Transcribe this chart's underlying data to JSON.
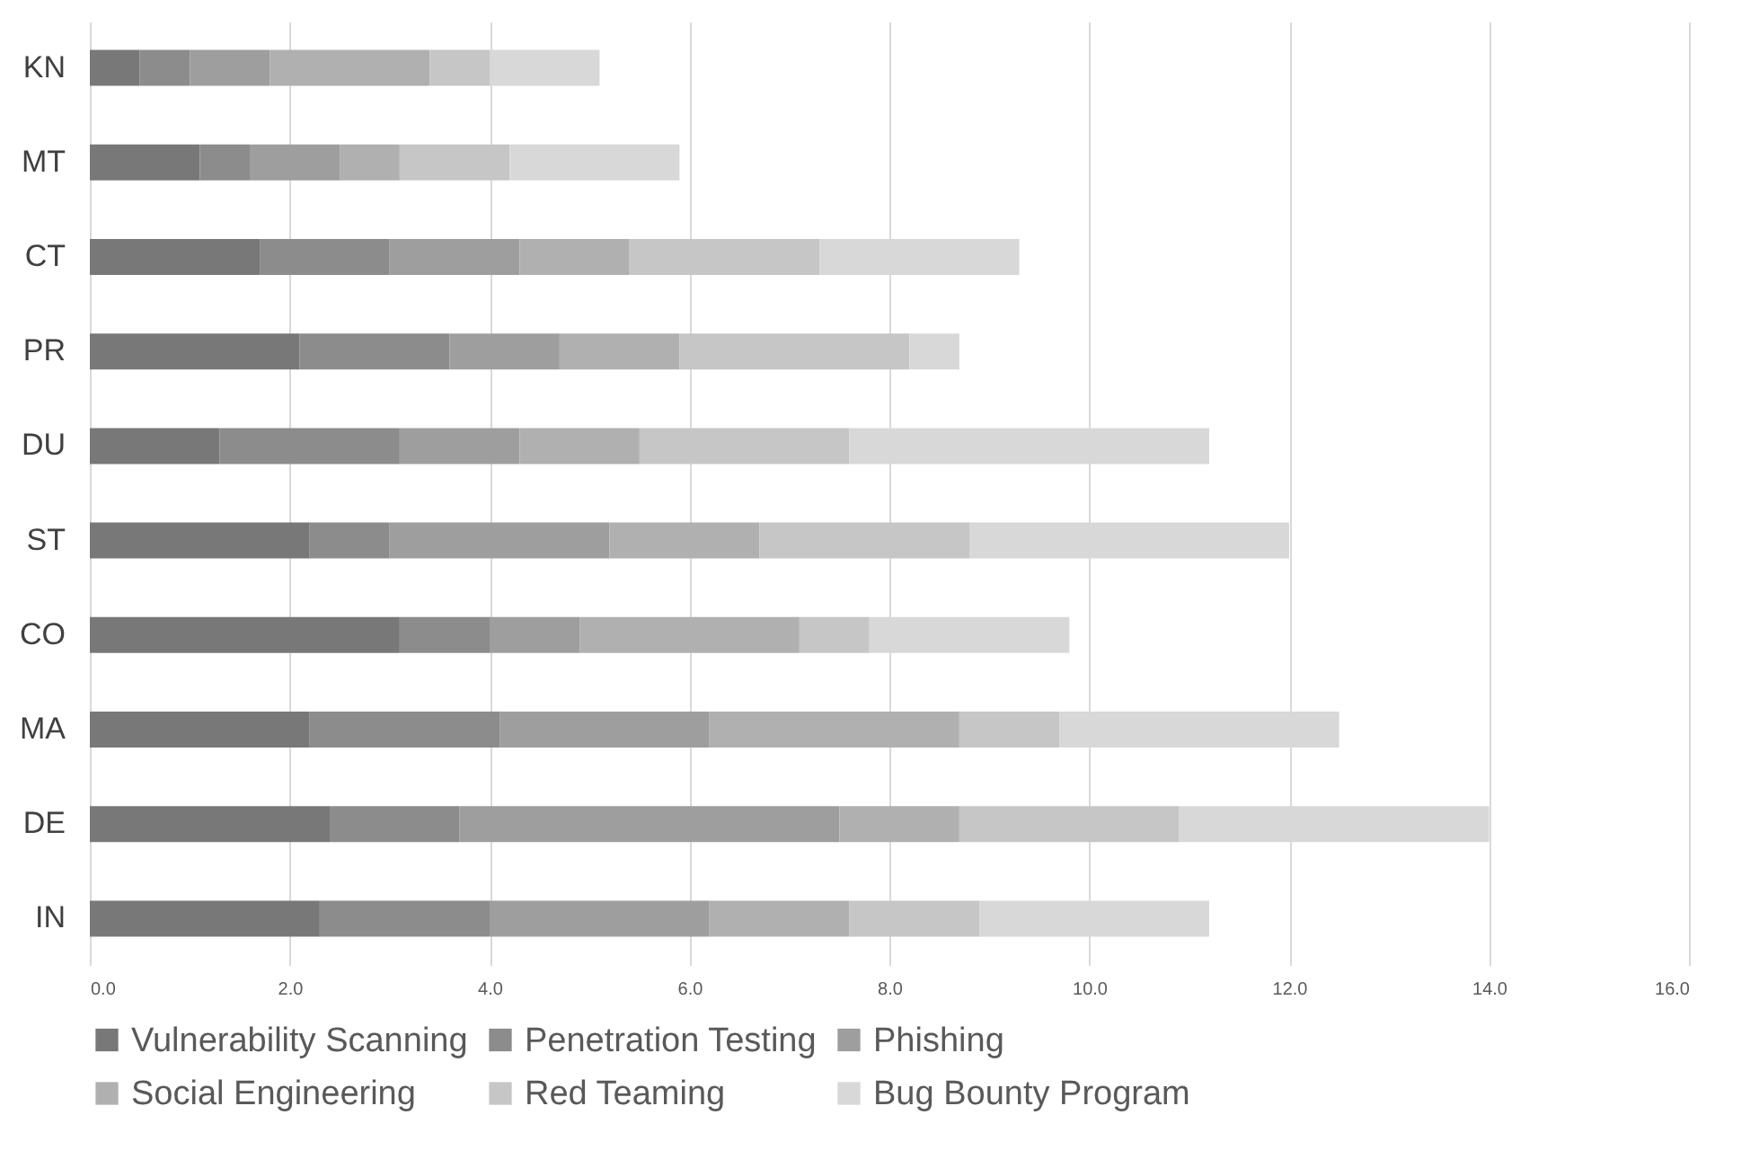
{
  "chart_data": {
    "type": "bar",
    "orientation": "horizontal",
    "stacked": true,
    "categories": [
      "KN",
      "MT",
      "CT",
      "PR",
      "DU",
      "ST",
      "CO",
      "MA",
      "DE",
      "IN"
    ],
    "series": [
      {
        "name": "Vulnerability Scanning",
        "color": "#787878",
        "values": [
          0.5,
          1.1,
          1.7,
          2.1,
          1.3,
          2.2,
          3.1,
          2.2,
          2.4,
          2.3
        ]
      },
      {
        "name": "Penetration Testing",
        "color": "#8c8c8c",
        "values": [
          0.5,
          0.5,
          1.3,
          1.5,
          1.8,
          0.8,
          0.9,
          1.9,
          1.3,
          1.7
        ]
      },
      {
        "name": "Phishing",
        "color": "#9e9e9e",
        "values": [
          0.8,
          0.9,
          1.3,
          1.1,
          1.2,
          2.2,
          0.9,
          2.1,
          3.8,
          2.2
        ]
      },
      {
        "name": "Social Engineering",
        "color": "#b0b0b0",
        "values": [
          1.6,
          0.6,
          1.1,
          1.2,
          1.2,
          1.5,
          2.2,
          2.5,
          1.2,
          1.4
        ]
      },
      {
        "name": "Red Teaming",
        "color": "#c6c6c6",
        "values": [
          0.6,
          1.1,
          1.9,
          2.3,
          2.1,
          2.1,
          0.7,
          1.0,
          2.2,
          1.3
        ]
      },
      {
        "name": "Bug Bounty Program",
        "color": "#d8d8d8",
        "values": [
          1.1,
          1.7,
          2.0,
          0.5,
          3.6,
          3.2,
          2.0,
          2.8,
          3.1,
          2.3
        ]
      }
    ],
    "xlim": [
      0,
      16
    ],
    "xticks": [
      {
        "value": 0,
        "label": "0.0"
      },
      {
        "value": 2,
        "label": "2.0"
      },
      {
        "value": 4,
        "label": "4.0"
      },
      {
        "value": 6,
        "label": "6.0"
      },
      {
        "value": 8,
        "label": "8.0"
      },
      {
        "value": 10,
        "label": "10.0"
      },
      {
        "value": 12,
        "label": "12.0"
      },
      {
        "value": 14,
        "label": "14.0"
      },
      {
        "value": 16,
        "label": "16.0"
      }
    ],
    "grid": "x",
    "legend": "bottom"
  }
}
